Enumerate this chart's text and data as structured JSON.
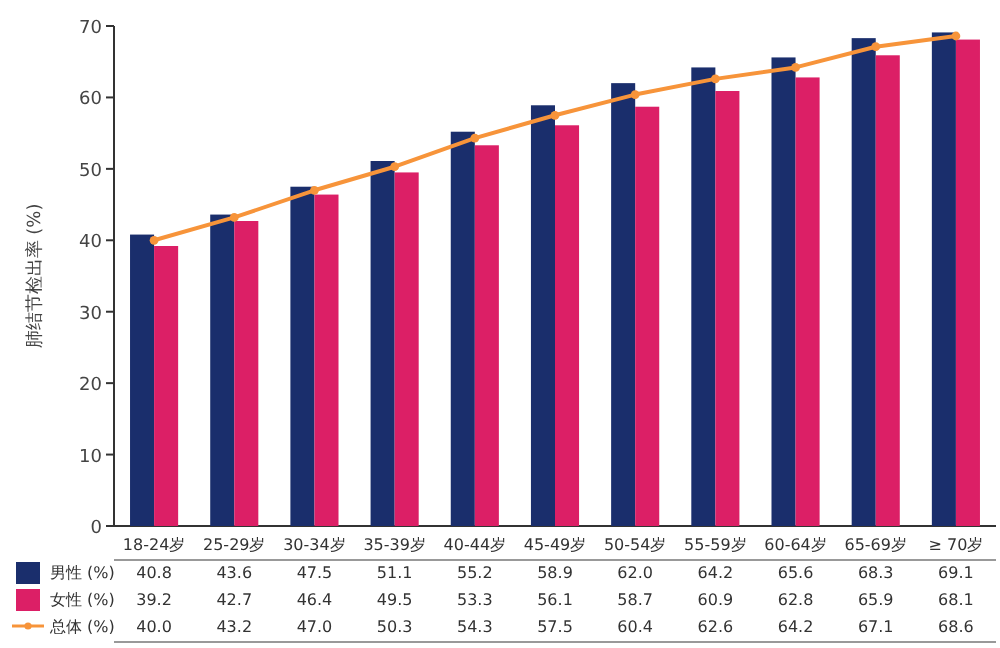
{
  "chart_data": {
    "type": "bar",
    "ylabel": "肺结节检出率 (%)",
    "categories": [
      "18-24岁",
      "25-29岁",
      "30-34岁",
      "35-39岁",
      "40-44岁",
      "45-49岁",
      "50-54岁",
      "55-59岁",
      "60-64岁",
      "65-69岁",
      "≥ 70岁"
    ],
    "series": [
      {
        "name": "男性 (%)",
        "color": "#1a2e6c",
        "values": [
          40.8,
          43.6,
          47.5,
          51.1,
          55.2,
          58.9,
          62.0,
          64.2,
          65.6,
          68.3,
          69.1
        ],
        "value_labels": [
          "40.8",
          "43.6",
          "47.5",
          "51.1",
          "55.2",
          "58.9",
          "62.0",
          "64.2",
          "65.6",
          "68.3",
          "69.1"
        ]
      },
      {
        "name": "女性 (%)",
        "color": "#dc1f66",
        "values": [
          39.2,
          42.7,
          46.4,
          49.5,
          53.3,
          56.1,
          58.7,
          60.9,
          62.8,
          65.9,
          68.1
        ],
        "value_labels": [
          "39.2",
          "42.7",
          "46.4",
          "49.5",
          "53.3",
          "56.1",
          "58.7",
          "60.9",
          "62.8",
          "65.9",
          "68.1"
        ]
      },
      {
        "name": "总体 (%)",
        "type": "line",
        "color": "#f7943a",
        "values": [
          40.0,
          43.2,
          47.0,
          50.3,
          54.3,
          57.5,
          60.4,
          62.6,
          64.2,
          67.1,
          68.6
        ],
        "value_labels": [
          "40.0",
          "43.2",
          "47.0",
          "50.3",
          "54.3",
          "57.5",
          "60.4",
          "62.6",
          "64.2",
          "67.1",
          "68.6"
        ]
      }
    ],
    "ylim": [
      0,
      70
    ],
    "yticks": [
      0,
      10,
      20,
      30,
      40,
      50,
      60,
      70
    ],
    "legend": "bottom left",
    "marker": "circle",
    "grid": false
  }
}
